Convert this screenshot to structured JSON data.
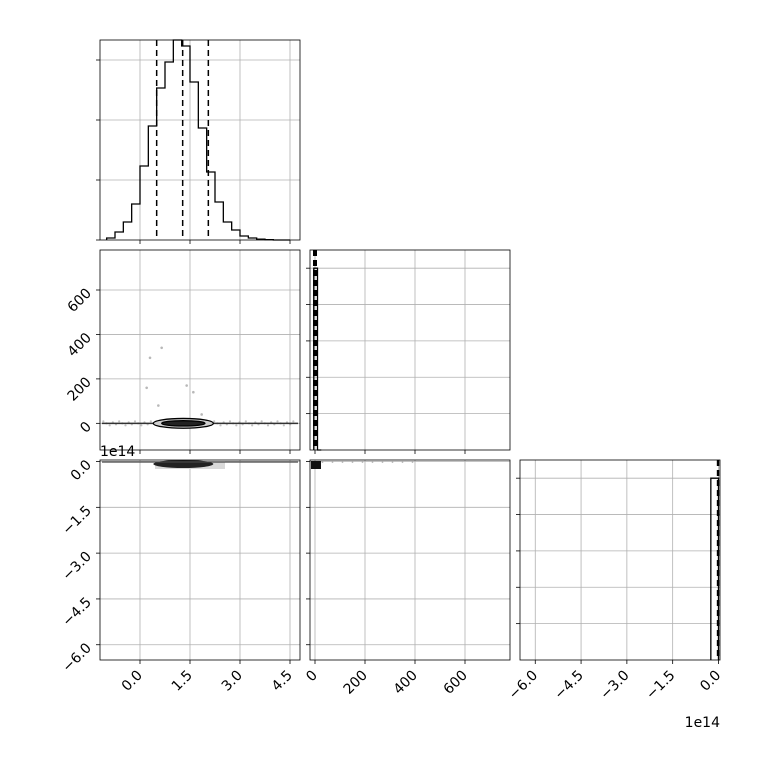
{
  "chart_data": [
    {
      "panel": "hist-1",
      "type": "bar",
      "style": "step",
      "xlim": [
        -1.2,
        4.8
      ],
      "ylim": [
        0,
        1.0
      ],
      "bin_edges": [
        -1.0,
        -0.75,
        -0.5,
        -0.25,
        0.0,
        0.25,
        0.5,
        0.75,
        1.0,
        1.25,
        1.5,
        1.75,
        2.0,
        2.25,
        2.5,
        2.75,
        3.0,
        3.25,
        3.5,
        3.75,
        4.0,
        4.25,
        4.5
      ],
      "values": [
        0.01,
        0.04,
        0.09,
        0.18,
        0.37,
        0.57,
        0.76,
        0.89,
        1.0,
        0.97,
        0.79,
        0.56,
        0.34,
        0.19,
        0.09,
        0.05,
        0.02,
        0.01,
        0.004,
        0.002,
        0.0,
        0.0
      ],
      "quantiles": [
        0.5,
        1.28,
        2.05
      ],
      "x_ticks": [
        0.0,
        1.5,
        3.0,
        4.5
      ],
      "grid": true,
      "ytick_labels_shown": false
    },
    {
      "panel": "contour-2-vs-1",
      "type": "scatter",
      "xlim": [
        -1.2,
        4.8
      ],
      "ylim": [
        -120,
        780
      ],
      "y_ticks": [
        0,
        200,
        400,
        600
      ],
      "y_tick_labels": [
        "0",
        "200",
        "400",
        "600"
      ],
      "center": [
        1.3,
        0
      ],
      "contour_levels": [
        {
          "half_width": 0.65,
          "half_height": 12
        },
        {
          "half_width": 0.9,
          "half_height": 22
        }
      ],
      "outliers": [
        [
          0.3,
          295
        ],
        [
          0.65,
          340
        ],
        [
          1.4,
          170
        ],
        [
          1.6,
          140
        ],
        [
          0.2,
          160
        ],
        [
          1.85,
          40
        ],
        [
          0.55,
          80
        ]
      ],
      "grid": true
    },
    {
      "panel": "hist-2",
      "type": "bar",
      "style": "step",
      "xlim": [
        -20,
        780
      ],
      "ylim": [
        0,
        1.1
      ],
      "bin_edges": [
        -5,
        10,
        25
      ],
      "values": [
        1.0,
        0.0
      ],
      "quantiles": [
        -5,
        0,
        5
      ],
      "x_ticks": [
        0,
        200,
        400,
        600
      ],
      "grid": true
    },
    {
      "panel": "contour-3-vs-1",
      "type": "scatter",
      "xlim": [
        -1.2,
        4.8
      ],
      "ylim": [
        -6.5,
        0.05
      ],
      "y_ticks": [
        0.0,
        -1.5,
        -3.0,
        -4.5,
        -6.0
      ],
      "y_tick_labels": [
        "0.0",
        "−1.5",
        "−3.0",
        "−4.5",
        "−6.0"
      ],
      "x_ticks": [
        0.0,
        1.5,
        3.0,
        4.5
      ],
      "x_tick_labels": [
        "0.0",
        "1.5",
        "3.0",
        "4.5"
      ],
      "y_offset_label": "1e14",
      "band_y": -0.08,
      "grid": true
    },
    {
      "panel": "contour-3-vs-2",
      "type": "scatter",
      "xlim": [
        -20,
        780
      ],
      "ylim": [
        -6.5,
        0.05
      ],
      "x_ticks": [
        0,
        200,
        400,
        600
      ],
      "x_tick_labels": [
        "0",
        "200",
        "400",
        "600"
      ],
      "cluster": [
        0,
        -0.08
      ],
      "grid": true
    },
    {
      "panel": "hist-3",
      "type": "bar",
      "style": "step",
      "xlim": [
        -6.5,
        0.05
      ],
      "ylim": [
        0,
        1.1
      ],
      "bin_edges": [
        -0.25,
        0.0
      ],
      "values": [
        1.0
      ],
      "quantiles": [
        -0.03,
        0.0
      ],
      "x_ticks": [
        -6.0,
        -4.5,
        -3.0,
        -1.5,
        0.0
      ],
      "x_tick_labels": [
        "−6.0",
        "−4.5",
        "−3.0",
        "−1.5",
        "0.0"
      ],
      "x_offset_label": "1e14",
      "grid": true
    }
  ]
}
